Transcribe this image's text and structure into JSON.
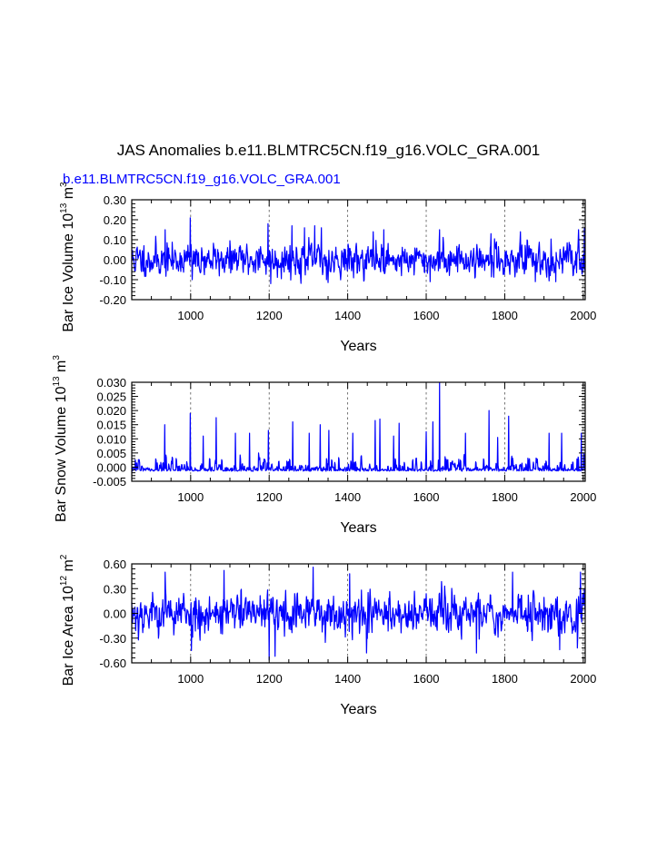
{
  "page": {
    "title": "JAS Anomalies b.e11.BLMTRC5CN.f19_g16.VOLC_GRA.001",
    "subtitle": "b.e11.BLMTRC5CN.f19_g16.VOLC_GRA.001"
  },
  "colors": {
    "series": "#0000ff",
    "axis": "#000000",
    "grid": "#555555"
  },
  "chart_data": [
    {
      "type": "line",
      "title": "",
      "xlabel": "Years",
      "ylabel": "Bar Ice Volume 10",
      "ylabel_exp": "13",
      "ylabel_unit": "m",
      "ylabel_unit_exp": "3",
      "xlim": [
        850,
        2005
      ],
      "ylim": [
        -0.2,
        0.3
      ],
      "xticks": [
        1000,
        1200,
        1400,
        1600,
        1800,
        2000
      ],
      "xtick_labels": [
        "1000",
        "1200",
        "1400",
        "1600",
        "1800",
        "2000"
      ],
      "yticks": [
        -0.2,
        -0.1,
        0.0,
        0.1,
        0.2,
        0.3
      ],
      "ytick_labels": [
        "-0.20",
        "-0.10",
        "0.00",
        "0.10",
        "0.20",
        "0.30"
      ],
      "grid": "vertical dashed at major x ticks",
      "series": [
        {
          "name": "Bar Ice Volume",
          "description": "annual JAS anomaly 850-2005, fluctuating mostly between -0.10 and 0.15",
          "baseline": 0.0,
          "spread": 0.055,
          "seed": 11,
          "spikes": [
            [
              935,
              0.15
            ],
            [
              999,
              0.21
            ],
            [
              1197,
              0.18
            ],
            [
              1258,
              0.17
            ],
            [
              1290,
              0.16
            ],
            [
              1316,
              0.17
            ],
            [
              1333,
              0.16
            ],
            [
              1465,
              0.14
            ],
            [
              1492,
              0.15
            ],
            [
              1634,
              0.15
            ],
            [
              1765,
              0.13
            ],
            [
              1840,
              0.14
            ],
            [
              1988,
              0.15
            ],
            [
              2003,
              0.16
            ]
          ],
          "dips": [
            [
              1004,
              -0.1
            ],
            [
              1204,
              -0.12
            ],
            [
              1346,
              -0.1
            ],
            [
              1610,
              -0.11
            ],
            [
              1878,
              -0.11
            ],
            [
              1930,
              -0.11
            ]
          ],
          "summary": {
            "min": -0.12,
            "max": 0.21
          }
        }
      ]
    },
    {
      "type": "line",
      "title": "",
      "xlabel": "Years",
      "ylabel": "Bar Snow Volume 10",
      "ylabel_exp": "13",
      "ylabel_unit": "m",
      "ylabel_unit_exp": "3",
      "xlim": [
        850,
        2005
      ],
      "ylim": [
        -0.005,
        0.03
      ],
      "xticks": [
        1000,
        1200,
        1400,
        1600,
        1800,
        2000
      ],
      "xtick_labels": [
        "1000",
        "1200",
        "1400",
        "1600",
        "1800",
        "2000"
      ],
      "yticks": [
        -0.005,
        0.0,
        0.005,
        0.01,
        0.015,
        0.02,
        0.025,
        0.03
      ],
      "ytick_labels": [
        "-0.005",
        "0.000",
        "0.005",
        "0.010",
        "0.015",
        "0.020",
        "0.025",
        "0.030"
      ],
      "grid": "vertical dashed at major x ticks",
      "series": [
        {
          "name": "Bar Snow Volume",
          "description": "skewed positive anomaly, base near -0.002 with sharp positive spikes",
          "baseline": -0.0015,
          "spread": 0.0016,
          "seed": 29,
          "skew": true,
          "spikes": [
            [
              934,
              0.015
            ],
            [
              999,
              0.019
            ],
            [
              1032,
              0.011
            ],
            [
              1065,
              0.0175
            ],
            [
              1114,
              0.012
            ],
            [
              1150,
              0.012
            ],
            [
              1198,
              0.013
            ],
            [
              1260,
              0.016
            ],
            [
              1302,
              0.012
            ],
            [
              1330,
              0.015
            ],
            [
              1352,
              0.013
            ],
            [
              1413,
              0.012
            ],
            [
              1470,
              0.0165
            ],
            [
              1482,
              0.017
            ],
            [
              1517,
              0.011
            ],
            [
              1531,
              0.0155
            ],
            [
              1600,
              0.0125
            ],
            [
              1617,
              0.016
            ],
            [
              1634,
              0.03
            ],
            [
              1700,
              0.012
            ],
            [
              1760,
              0.02
            ],
            [
              1782,
              0.0105
            ],
            [
              1810,
              0.018
            ],
            [
              1913,
              0.012
            ],
            [
              1945,
              0.012
            ],
            [
              1995,
              0.012
            ]
          ],
          "dips": [],
          "summary": {
            "min": -0.004,
            "max": 0.03
          }
        }
      ]
    },
    {
      "type": "line",
      "title": "",
      "xlabel": "Years",
      "ylabel": "Bar Ice Area 10",
      "ylabel_exp": "12",
      "ylabel_unit": "m",
      "ylabel_unit_exp": "2",
      "xlim": [
        850,
        2005
      ],
      "ylim": [
        -0.6,
        0.6
      ],
      "xticks": [
        1000,
        1200,
        1400,
        1600,
        1800,
        2000
      ],
      "xtick_labels": [
        "1000",
        "1200",
        "1400",
        "1600",
        "1800",
        "2000"
      ],
      "yticks": [
        -0.6,
        -0.3,
        0.0,
        0.3,
        0.6
      ],
      "ytick_labels": [
        "-0.60",
        "-0.30",
        "0.00",
        "0.30",
        "0.60"
      ],
      "grid": "vertical dashed at major x ticks",
      "series": [
        {
          "name": "Bar Ice Area",
          "description": "annual JAS anomaly, fluctuating roughly between -0.5 and 0.55",
          "baseline": 0.0,
          "spread": 0.17,
          "seed": 53,
          "spikes": [
            [
              935,
              0.5
            ],
            [
              1085,
              0.52
            ],
            [
              1312,
              0.56
            ],
            [
              1405,
              0.48
            ],
            [
              1820,
              0.5
            ],
            [
              1993,
              0.5
            ]
          ],
          "dips": [
            [
              1002,
              -0.45
            ],
            [
              1200,
              -0.56
            ],
            [
              1215,
              -0.52
            ],
            [
              1448,
              -0.48
            ],
            [
              1728,
              -0.48
            ],
            [
              1940,
              -0.44
            ],
            [
              1985,
              -0.42
            ]
          ],
          "summary": {
            "min": -0.56,
            "max": 0.56
          }
        }
      ]
    }
  ]
}
